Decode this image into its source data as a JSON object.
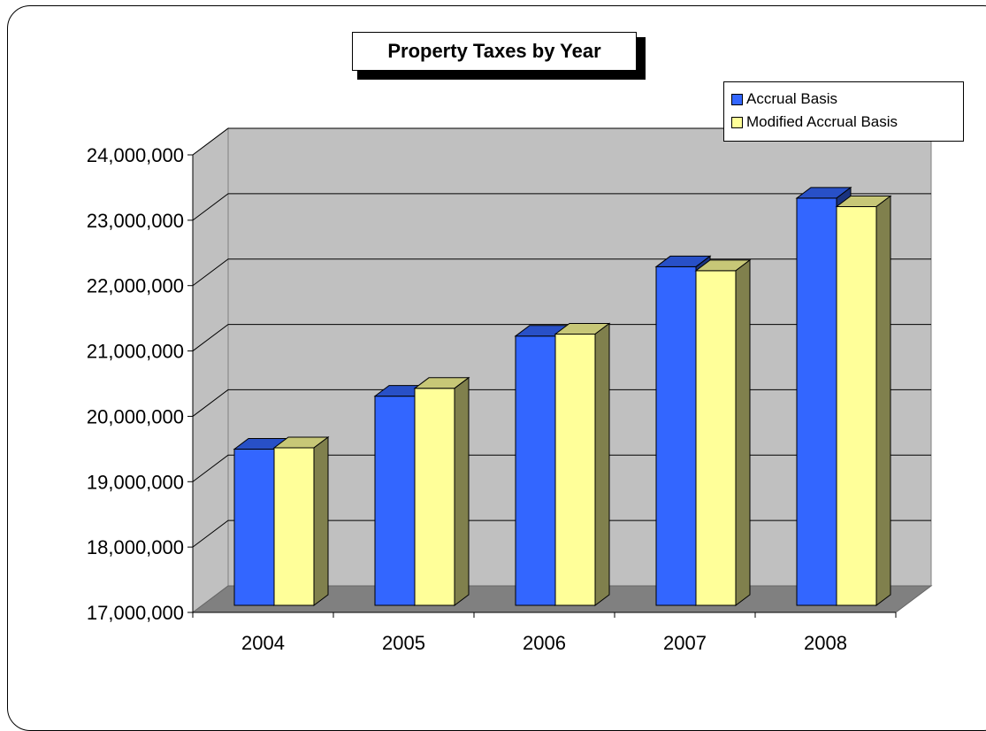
{
  "chart_data": {
    "type": "bar",
    "title": "Property Taxes by Year",
    "xlabel": "",
    "ylabel": "",
    "categories": [
      "2004",
      "2005",
      "2006",
      "2007",
      "2008"
    ],
    "series": [
      {
        "name": "Accrual Basis",
        "color": "#3366ff",
        "values": [
          19390000,
          20200000,
          21120000,
          22180000,
          23230000
        ]
      },
      {
        "name": "Modified Accrual Basis",
        "color": "#ffff99",
        "values": [
          19410000,
          20320000,
          21150000,
          22120000,
          23100000
        ]
      }
    ],
    "ylim": [
      17000000,
      24000000
    ],
    "yticks": [
      "17,000,000",
      "18,000,000",
      "19,000,000",
      "20,000,000",
      "21,000,000",
      "22,000,000",
      "23,000,000",
      "24,000,000"
    ],
    "grid": true,
    "legend_position": "top-right",
    "style": "3d-clustered-column",
    "colors": {
      "wall": "#c0c0c0",
      "floor": "#808080"
    }
  }
}
